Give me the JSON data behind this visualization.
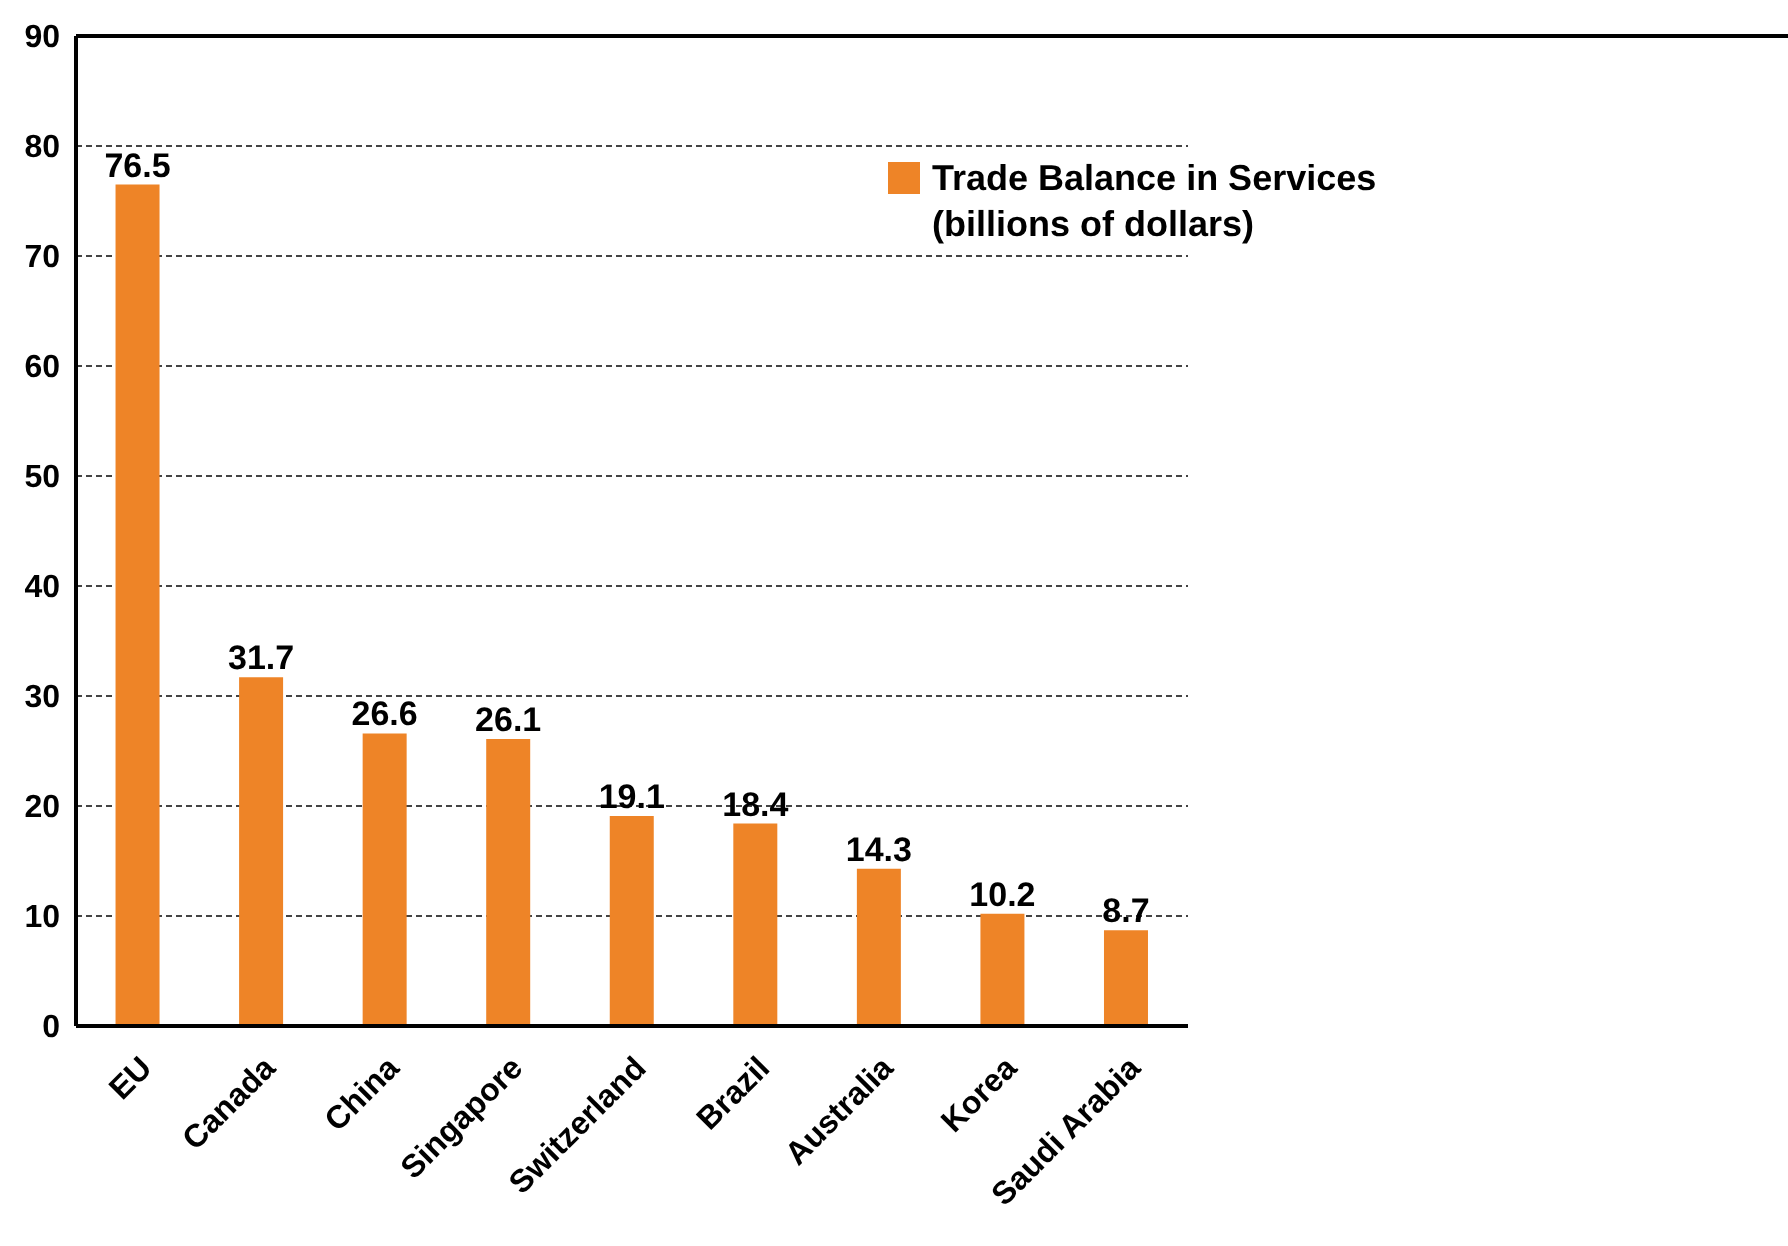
{
  "chart_data": {
    "type": "bar",
    "categories": [
      "EU",
      "Canada",
      "China",
      "Singapore",
      "Switzerland",
      "Brazil",
      "Australia",
      "Korea",
      "Saudi Arabia"
    ],
    "series": [
      {
        "name": "Trade Balance in Services (billions of dollars)",
        "color": "#ee8427",
        "values": [
          76.5,
          31.7,
          26.6,
          26.1,
          19.1,
          18.4,
          14.3,
          10.2,
          8.7
        ]
      }
    ],
    "ylim": [
      0,
      90
    ],
    "yticks": [
      0,
      10,
      20,
      30,
      40,
      50,
      60,
      70,
      80,
      90
    ],
    "grid": "y",
    "legend": "top right",
    "data_labels": true
  }
}
